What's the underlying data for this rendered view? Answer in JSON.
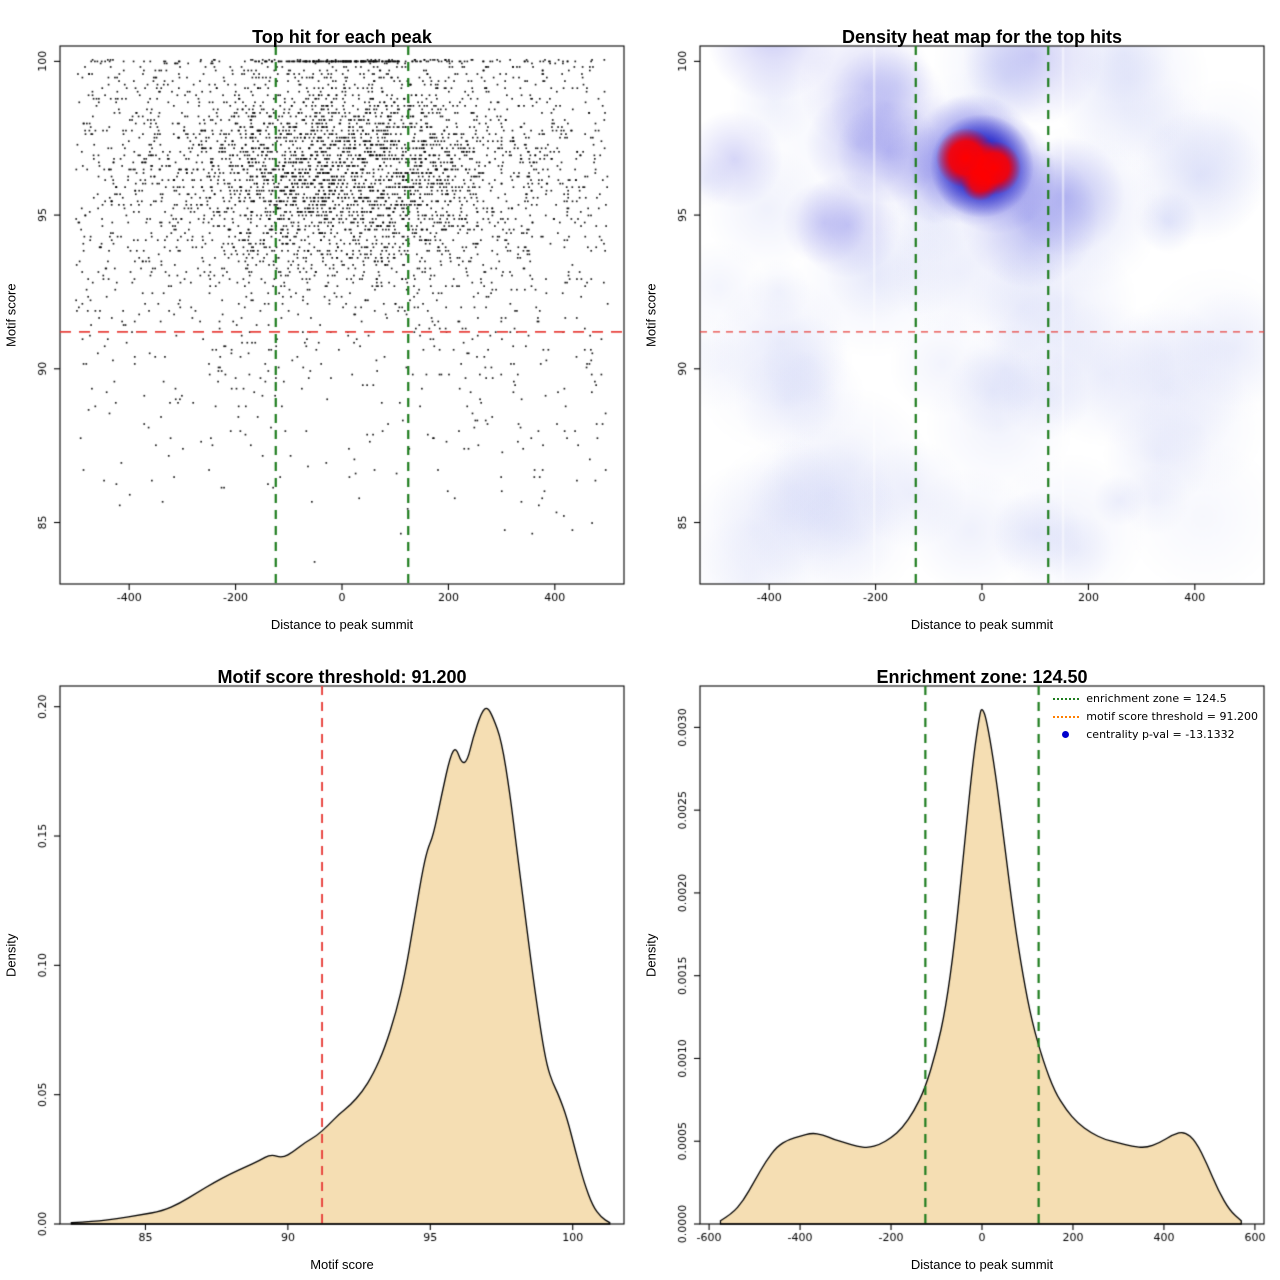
{
  "figure": {
    "background": "#ffffff"
  },
  "colors": {
    "threshold_red": "#e8413c",
    "zone_green": "#1e7d1e",
    "area_fill": "#f5deb3",
    "curve_stroke": "#000000",
    "scatter_point": "#000000",
    "heat_low": "#7b8ae8",
    "heat_mid": "#2a2ad8",
    "heat_deep": "#0a0abe",
    "heat_high": "#ff0000",
    "legend_blue": "#0000cd",
    "legend_orange": "#ff7f00"
  },
  "chart_data": [
    {
      "type": "scatter",
      "title": "Top hit for each peak",
      "xlabel": "Distance to peak summit",
      "ylabel": "Motif score",
      "xlim": [
        -530,
        530
      ],
      "ylim": [
        83,
        100.5
      ],
      "xticks": [
        -400,
        -200,
        0,
        200,
        400
      ],
      "xtick_labels": [
        "-400",
        "-200",
        "0",
        "200",
        "400"
      ],
      "yticks": [
        85,
        90,
        95,
        100
      ],
      "ytick_labels": [
        "85",
        "90",
        "95",
        "100"
      ],
      "hline_motif_score_threshold": 91.2,
      "vlines_enrichment_zone": [
        -124.5,
        124.5
      ],
      "n_points_approx": 4300,
      "generator": {
        "seed": 1337,
        "n_cluster": 2700,
        "cluster_sd_x": 150,
        "cluster_wide_fraction": 0.3,
        "cluster_wide_mult": 2.3,
        "cluster_mean_y": 96.2,
        "cluster_sd_y": 1.75,
        "n_background": 1500,
        "bg_pow": 0.45,
        "n_top_row": 150,
        "top_row_sd_x": 85,
        "n_top_row_wide": 60,
        "y_quantum": 0.115
      }
    },
    {
      "type": "heatmap",
      "title": "Density heat map for the top hits",
      "xlabel": "Distance to peak summit",
      "ylabel": "Motif score",
      "xlim": [
        -530,
        530
      ],
      "ylim": [
        83,
        100.5
      ],
      "xticks": [
        -400,
        -200,
        0,
        200,
        400
      ],
      "xtick_labels": [
        "-400",
        "-200",
        "0",
        "200",
        "400"
      ],
      "yticks": [
        85,
        90,
        95,
        100
      ],
      "ytick_labels": [
        "85",
        "90",
        "95",
        "100"
      ],
      "hline_motif_score_threshold": 91.2,
      "vlines_enrichment_zone": [
        -124.5,
        124.5
      ],
      "hotspot": {
        "x": 0,
        "y": 96.6
      },
      "heat": {
        "seed": 991,
        "n_noise": 62,
        "n_mid": 14,
        "n_column": 8
      }
    },
    {
      "type": "area",
      "title": "Motif score threshold: 91.200",
      "xlabel": "Motif score",
      "ylabel": "Density",
      "xlim": [
        82,
        101.8
      ],
      "ylim": [
        0,
        0.208
      ],
      "xticks": [
        85,
        90,
        95,
        100
      ],
      "xtick_labels": [
        "85",
        "90",
        "95",
        "100"
      ],
      "yticks": [
        0,
        0.05,
        0.1,
        0.15,
        0.2
      ],
      "ytick_labels": [
        "0.00",
        "0.05",
        "0.10",
        "0.15",
        "0.20"
      ],
      "vline_motif_score_threshold": 91.2,
      "curve": [
        [
          82.4,
          0.0005
        ],
        [
          83.2,
          0.001
        ],
        [
          84.0,
          0.002
        ],
        [
          84.8,
          0.0035
        ],
        [
          85.6,
          0.005
        ],
        [
          86.2,
          0.008
        ],
        [
          86.8,
          0.012
        ],
        [
          87.4,
          0.016
        ],
        [
          88.0,
          0.0195
        ],
        [
          88.5,
          0.022
        ],
        [
          89.0,
          0.0245
        ],
        [
          89.4,
          0.027
        ],
        [
          89.8,
          0.0255
        ],
        [
          90.2,
          0.028
        ],
        [
          90.6,
          0.0315
        ],
        [
          91.0,
          0.034
        ],
        [
          91.4,
          0.038
        ],
        [
          91.8,
          0.0425
        ],
        [
          92.2,
          0.046
        ],
        [
          92.6,
          0.051
        ],
        [
          93.0,
          0.058
        ],
        [
          93.4,
          0.068
        ],
        [
          93.8,
          0.082
        ],
        [
          94.1,
          0.096
        ],
        [
          94.4,
          0.115
        ],
        [
          94.7,
          0.135
        ],
        [
          94.9,
          0.145
        ],
        [
          95.1,
          0.15
        ],
        [
          95.4,
          0.166
        ],
        [
          95.7,
          0.181
        ],
        [
          95.9,
          0.1845
        ],
        [
          96.1,
          0.178
        ],
        [
          96.3,
          0.179
        ],
        [
          96.5,
          0.188
        ],
        [
          96.8,
          0.198
        ],
        [
          97.0,
          0.2
        ],
        [
          97.2,
          0.196
        ],
        [
          97.5,
          0.187
        ],
        [
          97.8,
          0.166
        ],
        [
          98.0,
          0.148
        ],
        [
          98.3,
          0.122
        ],
        [
          98.6,
          0.096
        ],
        [
          98.9,
          0.073
        ],
        [
          99.1,
          0.061
        ],
        [
          99.3,
          0.0545
        ],
        [
          99.5,
          0.05
        ],
        [
          99.8,
          0.041
        ],
        [
          100.1,
          0.028
        ],
        [
          100.4,
          0.016
        ],
        [
          100.7,
          0.007
        ],
        [
          101.0,
          0.0025
        ],
        [
          101.3,
          0.0005
        ]
      ]
    },
    {
      "type": "area",
      "title": "Enrichment zone: 124.50",
      "xlabel": "Distance to peak summit",
      "ylabel": "Density",
      "xlim": [
        -620,
        620
      ],
      "ylim": [
        0,
        0.00325
      ],
      "xticks": [
        -600,
        -400,
        -200,
        0,
        200,
        400,
        600
      ],
      "xtick_labels": [
        "-600",
        "-400",
        "-200",
        "0",
        "200",
        "400",
        "600"
      ],
      "yticks": [
        0,
        0.0005,
        0.001,
        0.0015,
        0.002,
        0.0025,
        0.003
      ],
      "ytick_labels": [
        "0.0000",
        "0.0005",
        "0.0010",
        "0.0015",
        "0.0020",
        "0.0025",
        "0.0030"
      ],
      "vlines_enrichment_zone": [
        -124.5,
        124.5
      ],
      "curve": [
        [
          -575,
          2e-05
        ],
        [
          -550,
          6e-05
        ],
        [
          -525,
          0.00014
        ],
        [
          -500,
          0.00026
        ],
        [
          -475,
          0.00038
        ],
        [
          -450,
          0.00047
        ],
        [
          -425,
          0.00051
        ],
        [
          -400,
          0.00053
        ],
        [
          -375,
          0.00055
        ],
        [
          -350,
          0.00054
        ],
        [
          -325,
          0.00051
        ],
        [
          -300,
          0.00049
        ],
        [
          -275,
          0.00047
        ],
        [
          -250,
          0.00046
        ],
        [
          -225,
          0.00048
        ],
        [
          -200,
          0.00052
        ],
        [
          -175,
          0.00058
        ],
        [
          -150,
          0.00068
        ],
        [
          -125,
          0.00082
        ],
        [
          -100,
          0.00105
        ],
        [
          -80,
          0.0013
        ],
        [
          -60,
          0.0017
        ],
        [
          -40,
          0.00225
        ],
        [
          -20,
          0.0028
        ],
        [
          -5,
          0.00308
        ],
        [
          0,
          0.00312
        ],
        [
          10,
          0.00305
        ],
        [
          30,
          0.00272
        ],
        [
          50,
          0.00228
        ],
        [
          70,
          0.00185
        ],
        [
          90,
          0.0015
        ],
        [
          110,
          0.00122
        ],
        [
          135,
          0.00098
        ],
        [
          160,
          0.0008
        ],
        [
          185,
          0.00069
        ],
        [
          210,
          0.00061
        ],
        [
          240,
          0.00055
        ],
        [
          270,
          0.00051
        ],
        [
          300,
          0.00049
        ],
        [
          330,
          0.00047
        ],
        [
          360,
          0.00046
        ],
        [
          390,
          0.00049
        ],
        [
          420,
          0.00054
        ],
        [
          445,
          0.00056
        ],
        [
          470,
          0.0005
        ],
        [
          495,
          0.00036
        ],
        [
          520,
          0.0002
        ],
        [
          545,
          8e-05
        ],
        [
          570,
          2e-05
        ]
      ],
      "legend": [
        {
          "label": "enrichment zone = 124.5",
          "style": "dotted-line",
          "color": "#1e7d1e"
        },
        {
          "label": "motif score threshold = 91.200",
          "style": "dotted-line",
          "color": "#ff7f00"
        },
        {
          "label": "centrality p-val = -13.1332",
          "style": "point",
          "color": "#0000cd"
        }
      ]
    }
  ]
}
